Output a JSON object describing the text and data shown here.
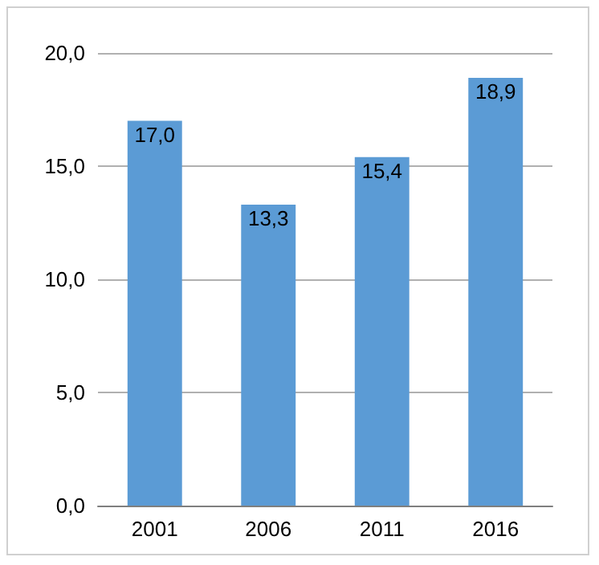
{
  "chart_data": {
    "type": "bar",
    "categories": [
      "2001",
      "2006",
      "2011",
      "2016"
    ],
    "values": [
      17.0,
      13.3,
      15.4,
      18.9
    ],
    "value_labels": [
      "17,0",
      "13,3",
      "15,4",
      "18,9"
    ],
    "color": "#5b9bd5",
    "ylim": [
      0,
      20
    ],
    "yticks": [
      {
        "value": 0,
        "label": "0,0"
      },
      {
        "value": 5,
        "label": "5,0"
      },
      {
        "value": 10,
        "label": "10,0"
      },
      {
        "value": 15,
        "label": "15,0"
      },
      {
        "value": 20,
        "label": "20,0"
      }
    ],
    "grid": "y"
  }
}
